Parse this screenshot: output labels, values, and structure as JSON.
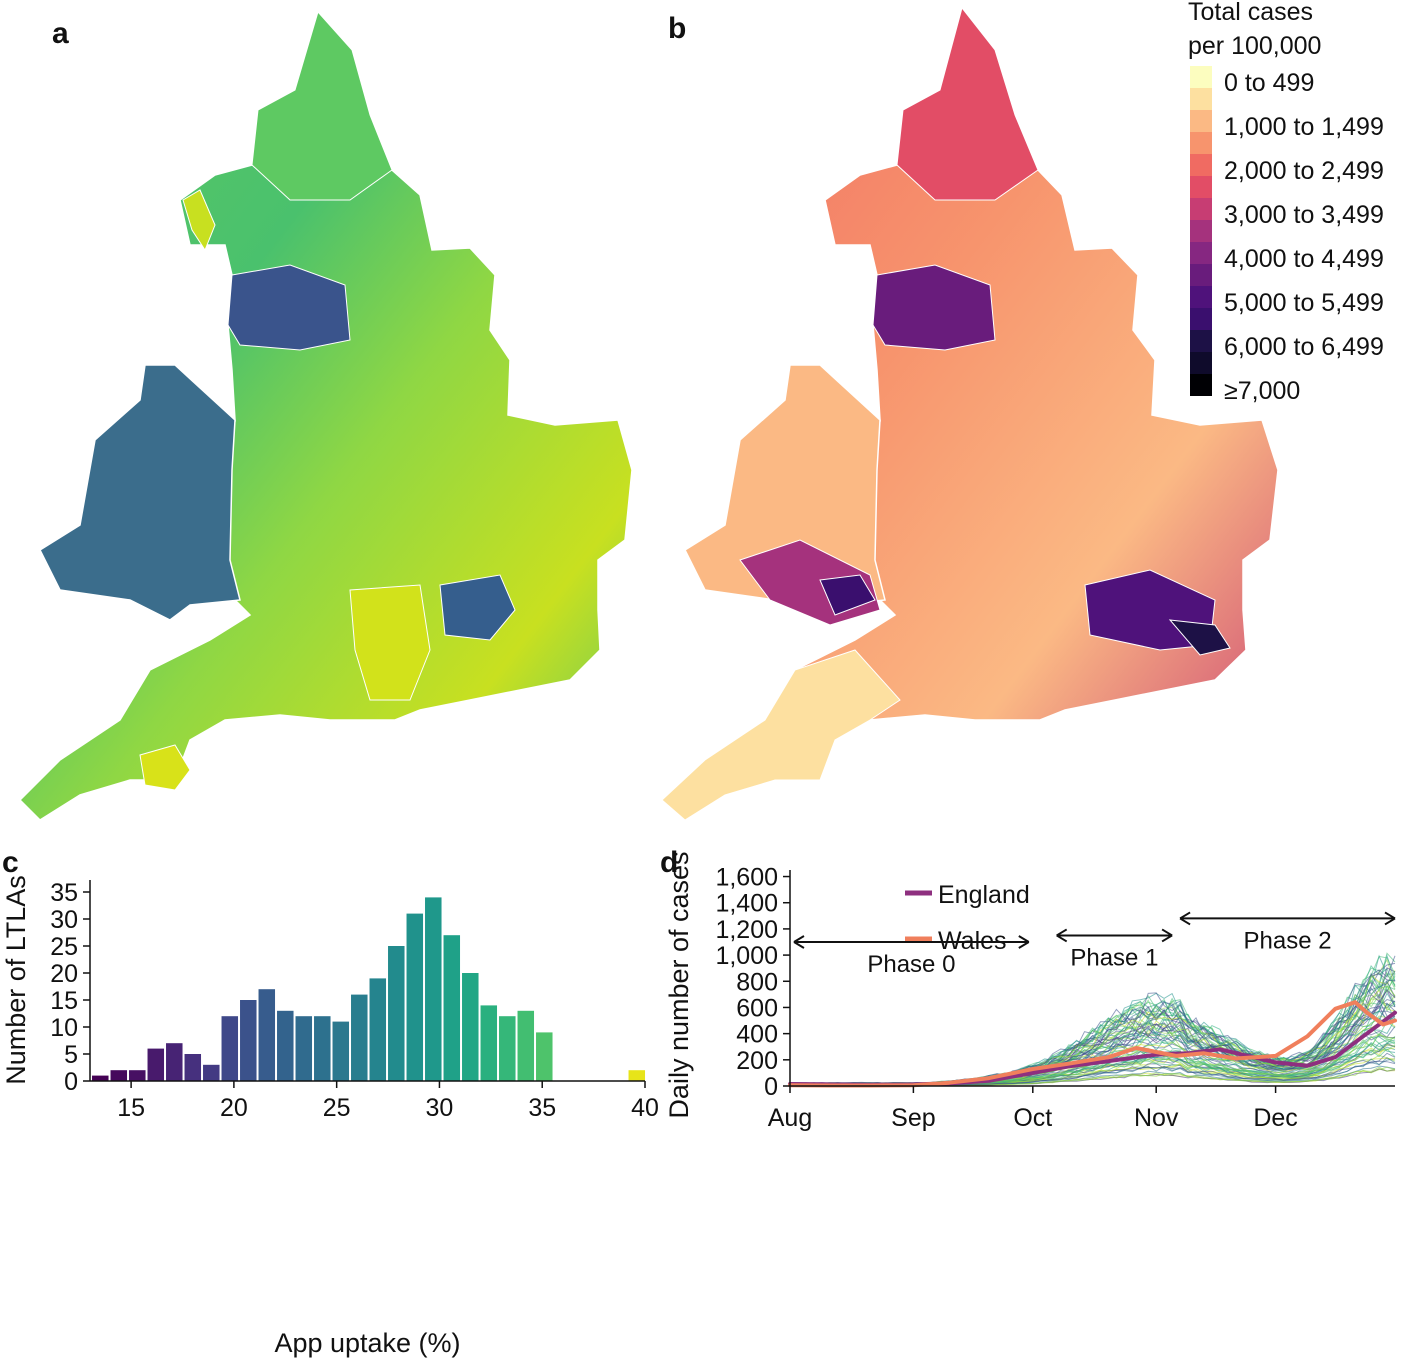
{
  "panels": {
    "a": "a",
    "b": "b",
    "c": "c",
    "d": "d"
  },
  "map_legend": {
    "title_line1": "Total cases",
    "title_line2": "per 100,000",
    "entries": [
      {
        "label": "0 to 499",
        "color": "#fcfdbf"
      },
      {
        "label": "",
        "color": "#fde0a0"
      },
      {
        "label": "1,000 to 1,499",
        "color": "#fbb984"
      },
      {
        "label": "",
        "color": "#f7946d"
      },
      {
        "label": "2,000 to 2,499",
        "color": "#f06b62"
      },
      {
        "label": "",
        "color": "#e24d66"
      },
      {
        "label": "3,000 to 3,499",
        "color": "#c73d73"
      },
      {
        "label": "",
        "color": "#a5327d"
      },
      {
        "label": "4,000 to 4,499",
        "color": "#862781"
      },
      {
        "label": "",
        "color": "#691c7c"
      },
      {
        "label": "5,000 to 5,499",
        "color": "#4f127b"
      },
      {
        "label": "",
        "color": "#3a0f6e"
      },
      {
        "label": "6,000 to 6,499",
        "color": "#1d1146"
      },
      {
        "label": "",
        "color": "#0f0b2b"
      },
      {
        "label": "≥7,000",
        "color": "#000004"
      }
    ]
  },
  "chart_data": [
    {
      "id": "c",
      "type": "bar",
      "xlabel": "App uptake (%)",
      "ylabel": "Number of LTLAs",
      "xlim": [
        13,
        40
      ],
      "ylim": [
        0,
        35
      ],
      "xticks": [
        "15",
        "20",
        "25",
        "30",
        "35",
        "40"
      ],
      "yticks": [
        "0",
        "5",
        "10",
        "15",
        "20",
        "25",
        "30",
        "35"
      ],
      "bin_width": 0.9,
      "bins": [
        13.5,
        14.4,
        15.3,
        16.2,
        17.1,
        18.0,
        18.9,
        19.8,
        20.7,
        21.6,
        22.5,
        23.4,
        24.3,
        25.2,
        26.1,
        27.0,
        27.9,
        28.8,
        29.7,
        30.6,
        31.5,
        32.4,
        33.3,
        34.2,
        35.1,
        36.0,
        36.9,
        37.8,
        38.7,
        39.6
      ],
      "values": [
        1,
        2,
        2,
        6,
        7,
        5,
        3,
        12,
        15,
        17,
        13,
        12,
        12,
        11,
        16,
        19,
        25,
        31,
        34,
        27,
        20,
        14,
        12,
        13,
        9,
        0,
        0,
        0,
        0,
        2
      ],
      "colors": [
        "#440154",
        "#46085c",
        "#471063",
        "#481a6c",
        "#472374",
        "#46307e",
        "#433a83",
        "#3f4889",
        "#3b528b",
        "#375c8d",
        "#33638d",
        "#306b8e",
        "#2d718e",
        "#2b788e",
        "#287d8e",
        "#25848e",
        "#228b8d",
        "#20928c",
        "#1f988b",
        "#1fa188",
        "#21a685",
        "#2ab07f",
        "#35b779",
        "#42be71",
        "#4ec36b",
        "#6ccd5a",
        "#86d549",
        "#a8db34",
        "#bddf26",
        "#e7e419"
      ]
    },
    {
      "id": "d",
      "type": "line",
      "xlabel": "",
      "ylabel": "Daily number of cases",
      "x_range_days": [
        0,
        152
      ],
      "ylim": [
        0,
        1650
      ],
      "xticks": [
        {
          "label": "Aug",
          "day": 0
        },
        {
          "label": "Sep",
          "day": 31
        },
        {
          "label": "Oct",
          "day": 61
        },
        {
          "label": "Nov",
          "day": 92
        },
        {
          "label": "Dec",
          "day": 122
        }
      ],
      "yticks": [
        "0",
        "200",
        "400",
        "600",
        "800",
        "1,000",
        "1,200",
        "1,400",
        "1,600"
      ],
      "series": [
        {
          "name": "England",
          "color": "#8e2f7f",
          "days": [
            0,
            10,
            20,
            31,
            40,
            50,
            61,
            70,
            80,
            92,
            100,
            108,
            115,
            122,
            130,
            137,
            144,
            152
          ],
          "values": [
            15,
            12,
            10,
            12,
            20,
            40,
            100,
            150,
            190,
            240,
            250,
            280,
            230,
            180,
            155,
            220,
            380,
            560
          ]
        },
        {
          "name": "Wales",
          "color": "#f07f5c",
          "days": [
            0,
            10,
            20,
            31,
            40,
            50,
            61,
            70,
            80,
            87,
            92,
            97,
            104,
            112,
            122,
            130,
            137,
            142,
            145,
            149,
            152
          ],
          "values": [
            5,
            4,
            4,
            6,
            25,
            60,
            130,
            170,
            220,
            290,
            260,
            230,
            250,
            210,
            230,
            380,
            590,
            640,
            560,
            470,
            500
          ]
        }
      ],
      "phases": [
        {
          "label": "Phase 0",
          "from_day": 1,
          "to_day": 60,
          "y": 1100
        },
        {
          "label": "Phase 1",
          "from_day": 67,
          "to_day": 96,
          "y": 1150
        },
        {
          "label": "Phase 2",
          "from_day": 98,
          "to_day": 152,
          "y": 1280
        }
      ]
    }
  ]
}
